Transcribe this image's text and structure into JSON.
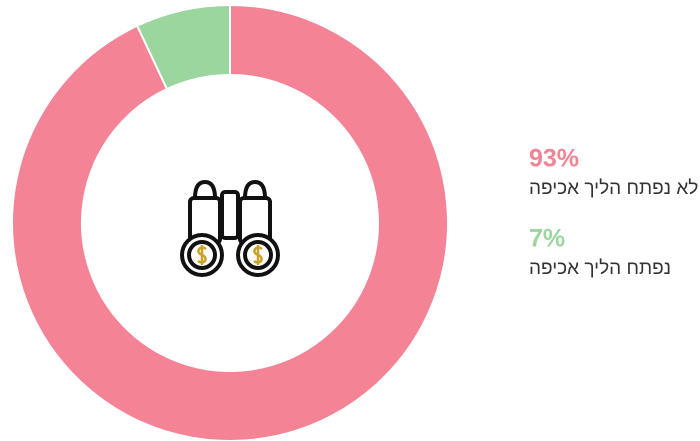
{
  "chart_data": {
    "type": "donut",
    "categories": [
      "לא נפתח הליך אכיפה",
      "נפתח הליך אכיפה"
    ],
    "values": [
      93,
      7
    ],
    "value_labels": [
      "93%",
      "7%"
    ],
    "colors": [
      "#f48396",
      "#9ad69d"
    ]
  }
}
